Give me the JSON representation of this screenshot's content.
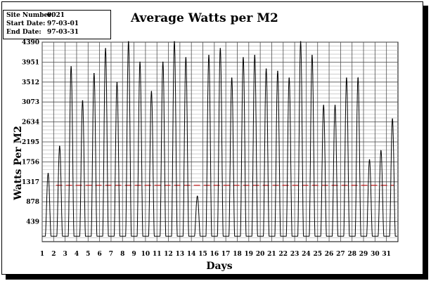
{
  "info": {
    "site_label": "Site Number:",
    "site_value": "0021",
    "start_label": "Start Date:",
    "start_value": "97-03-01",
    "end_label": "End Date:",
    "end_value": "97-03-31"
  },
  "chart_data": {
    "type": "line",
    "title": "Average Watts per M2",
    "xlabel": "Days",
    "ylabel": "Watts Per M2",
    "ylim": [
      0,
      4390
    ],
    "xlim": [
      1,
      32
    ],
    "yticks": [
      439,
      878,
      1317,
      1756,
      2195,
      2634,
      3073,
      3512,
      3951,
      4390
    ],
    "xticks": [
      1,
      2,
      3,
      4,
      5,
      6,
      7,
      8,
      9,
      10,
      11,
      12,
      13,
      14,
      15,
      16,
      17,
      18,
      19,
      20,
      21,
      22,
      23,
      24,
      25,
      26,
      27,
      28,
      29,
      30,
      31
    ],
    "grid": true,
    "colors": {
      "series": "#000000",
      "reference": "#cc0000"
    },
    "series": [
      {
        "values": [
          1500,
          2100,
          3850,
          3100,
          3700,
          4250,
          3500,
          4400,
          3950,
          3300,
          3950,
          4400,
          4050,
          1000,
          4100,
          4250,
          3600,
          4050,
          4100,
          3800,
          3750,
          3600,
          4400,
          4100,
          3000,
          3000,
          3600,
          3600,
          1800,
          2000,
          2700
        ]
      }
    ],
    "reference_line": {
      "y": 1240,
      "style": "dashed"
    }
  }
}
